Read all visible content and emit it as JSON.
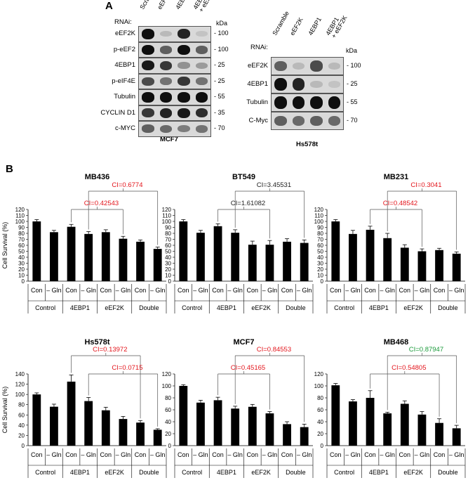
{
  "panel_a": {
    "letter": "A",
    "kda_label": "kDa",
    "mcf7": {
      "rnai_label": "RNAi:",
      "lanes": [
        "Scramble",
        "eEF2K",
        "4EBP1",
        "4EBP1\n+ eEF2K"
      ],
      "rows": [
        {
          "name": "eEF2K",
          "mw": "- 100",
          "bands": [
            1.0,
            0.15,
            0.9,
            0.1
          ]
        },
        {
          "name": "p-eEF2",
          "mw": "- 100",
          "bands": [
            1.0,
            0.6,
            1.0,
            0.6
          ]
        },
        {
          "name": "4EBP1",
          "mw": "- 25",
          "bands": [
            0.95,
            0.8,
            0.35,
            0.3
          ]
        },
        {
          "name": "p-eIF4E",
          "mw": "- 25",
          "bands": [
            0.7,
            0.5,
            0.8,
            0.5
          ]
        },
        {
          "name": "Tubulin",
          "mw": "- 55",
          "bands": [
            1.0,
            1.0,
            1.0,
            1.0
          ]
        },
        {
          "name": "CYCLIN D1",
          "mw": "- 35",
          "bands": [
            0.8,
            0.9,
            0.95,
            0.85
          ]
        },
        {
          "name": "c-MYC",
          "mw": "- 70",
          "bands": [
            0.6,
            0.55,
            0.45,
            0.5
          ]
        }
      ],
      "cell_line": "MCF7"
    },
    "hs578t": {
      "rnai_label": "RNAi:",
      "lanes": [
        "Scramble",
        "eEF2K",
        "4EBP1",
        "4EBP1\n+ eEF2K"
      ],
      "rows": [
        {
          "name": "eEF2K",
          "mw": "- 100",
          "bands": [
            0.6,
            0.15,
            0.7,
            0.15
          ]
        },
        {
          "name": "4EBP1",
          "mw": "- 25",
          "bands": [
            1.0,
            0.9,
            0.15,
            0.1
          ]
        },
        {
          "name": "Tubulin",
          "mw": "- 55",
          "bands": [
            1.0,
            1.0,
            1.0,
            1.0
          ]
        },
        {
          "name": "C-Myc",
          "mw": "- 70",
          "bands": [
            0.6,
            0.55,
            0.6,
            0.55
          ]
        }
      ],
      "cell_line": "Hs578t"
    }
  },
  "panel_b": {
    "letter": "B",
    "ylabel": "Cell Survival (%)",
    "bar_labels": [
      "Con",
      "– Gln",
      "Con",
      "– Gln",
      "Con",
      "– Gln",
      "Con",
      "– Gln"
    ],
    "groups": [
      "Control",
      "4EBP1",
      "eEF2K",
      "Double"
    ]
  },
  "chart_data": [
    {
      "type": "bar",
      "title": "MB436",
      "ylim": [
        0,
        120
      ],
      "yticks": [
        0,
        10,
        20,
        30,
        40,
        50,
        60,
        70,
        80,
        90,
        100,
        110,
        120
      ],
      "categories": [
        "Control Con",
        "Control –Gln",
        "4EBP1 Con",
        "4EBP1 –Gln",
        "eEF2K Con",
        "eEF2K –Gln",
        "Double Con",
        "Double –Gln"
      ],
      "values": [
        100,
        82,
        91,
        79,
        82,
        71,
        66,
        54
      ],
      "errors": [
        3,
        3,
        4,
        4,
        4,
        4,
        3,
        3
      ],
      "annotations": [
        {
          "text": "CI=0.6774",
          "color": "#e3141b",
          "from": 3,
          "to": 7,
          "level": 2
        },
        {
          "text": "CI=0.42543",
          "color": "#e3141b",
          "from": 2,
          "to": 5,
          "level": 1
        }
      ]
    },
    {
      "type": "bar",
      "title": "BT549",
      "ylim": [
        0,
        120
      ],
      "yticks": [
        0,
        10,
        20,
        30,
        40,
        50,
        60,
        70,
        80,
        90,
        100,
        110,
        120
      ],
      "categories": [
        "Control Con",
        "Control –Gln",
        "4EBP1 Con",
        "4EBP1 –Gln",
        "eEF2K Con",
        "eEF2K –Gln",
        "Double Con",
        "Double –Gln"
      ],
      "values": [
        100,
        81,
        92,
        81,
        61,
        61,
        66,
        64
      ],
      "errors": [
        3,
        4,
        4,
        5,
        6,
        7,
        5,
        5
      ],
      "annotations": [
        {
          "text": "CI=3.45531",
          "color": "#222222",
          "from": 3,
          "to": 7,
          "level": 2
        },
        {
          "text": "CI=1.61082",
          "color": "#222222",
          "from": 2,
          "to": 5,
          "level": 1
        }
      ]
    },
    {
      "type": "bar",
      "title": "MB231",
      "ylim": [
        0,
        120
      ],
      "yticks": [
        0,
        10,
        20,
        30,
        40,
        50,
        60,
        70,
        80,
        90,
        100,
        110,
        120
      ],
      "categories": [
        "Control Con",
        "Control –Gln",
        "4EBP1 Con",
        "4EBP1 –Gln",
        "eEF2K Con",
        "eEF2K –Gln",
        "Double Con",
        "Double –Gln"
      ],
      "values": [
        100,
        79,
        86,
        72,
        56,
        50,
        52,
        46
      ],
      "errors": [
        3,
        6,
        6,
        8,
        5,
        4,
        3,
        3
      ],
      "annotations": [
        {
          "text": "CI=0.3041",
          "color": "#e3141b",
          "from": 3,
          "to": 7,
          "level": 2
        },
        {
          "text": "CI=0.48542",
          "color": "#e3141b",
          "from": 2,
          "to": 5,
          "level": 1
        }
      ]
    },
    {
      "type": "bar",
      "title": "Hs578t",
      "ylim": [
        0,
        140
      ],
      "yticks": [
        0,
        20,
        40,
        60,
        80,
        100,
        120,
        140
      ],
      "categories": [
        "Control Con",
        "Control –Gln",
        "4EBP1 Con",
        "4EBP1 –Gln",
        "eEF2K Con",
        "eEF2K –Gln",
        "Double Con",
        "Double –Gln"
      ],
      "values": [
        100,
        76,
        125,
        87,
        69,
        52,
        45,
        31
      ],
      "errors": [
        3,
        5,
        13,
        7,
        6,
        5,
        4,
        2
      ],
      "annotations": [
        {
          "text": "CI=0.13972",
          "color": "#e3141b",
          "from": 2,
          "to": 6,
          "level": 2
        },
        {
          "text": "CI=0.0715",
          "color": "#e3141b",
          "from": 3,
          "to": 7,
          "level": 1
        }
      ]
    },
    {
      "type": "bar",
      "title": "MCF7",
      "ylim": [
        0,
        120
      ],
      "yticks": [
        0,
        20,
        40,
        60,
        80,
        100,
        120
      ],
      "categories": [
        "Control Con",
        "Control –Gln",
        "4EBP1 Con",
        "4EBP1 –Gln",
        "eEF2K Con",
        "eEF2K –Gln",
        "Double Con",
        "Double –Gln"
      ],
      "values": [
        100,
        72,
        76,
        62,
        65,
        54,
        36,
        31
      ],
      "errors": [
        2,
        4,
        5,
        4,
        4,
        3,
        4,
        5
      ],
      "annotations": [
        {
          "text": "CI=0.84553",
          "color": "#e3141b",
          "from": 3,
          "to": 7,
          "level": 2
        },
        {
          "text": "CI=0.45165",
          "color": "#e3141b",
          "from": 2,
          "to": 5,
          "level": 1
        }
      ]
    },
    {
      "type": "bar",
      "title": "MB468",
      "ylim": [
        0,
        120
      ],
      "yticks": [
        0,
        20,
        40,
        60,
        80,
        100,
        120
      ],
      "categories": [
        "Control Con",
        "Control –Gln",
        "4EBP1 Con",
        "4EBP1 –Gln",
        "eEF2K Con",
        "eEF2K –Gln",
        "Double Con",
        "Double –Gln"
      ],
      "values": [
        101,
        74,
        80,
        54,
        70,
        52,
        38,
        29
      ],
      "errors": [
        3,
        3,
        12,
        2,
        5,
        5,
        7,
        5
      ],
      "annotations": [
        {
          "text": "CI=0.87947",
          "color": "#1a9a3a",
          "from": 3,
          "to": 7,
          "level": 2
        },
        {
          "text": "CI=0.54805",
          "color": "#e3141b",
          "from": 2,
          "to": 6,
          "level": 1
        }
      ]
    }
  ]
}
